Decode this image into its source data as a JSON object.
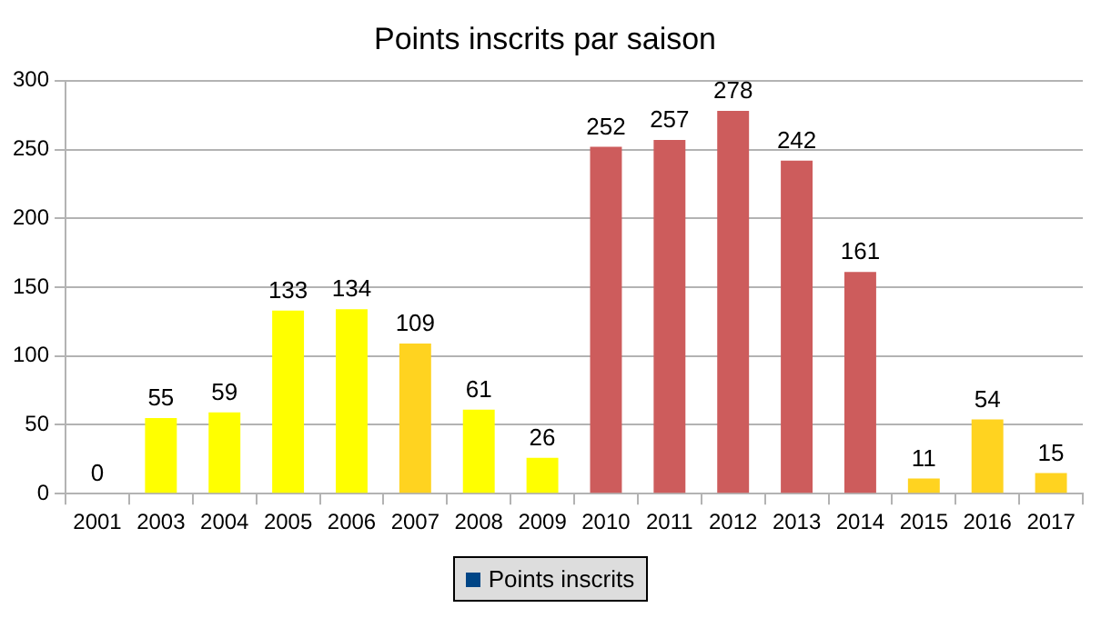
{
  "chart_data": {
    "type": "bar",
    "title": "Points inscrits par saison",
    "categories": [
      "2001",
      "2003",
      "2004",
      "2005",
      "2006",
      "2007",
      "2008",
      "2009",
      "2010",
      "2011",
      "2012",
      "2013",
      "2014",
      "2015",
      "2016",
      "2017"
    ],
    "series": [
      {
        "name": "Points inscrits",
        "color": "#004586",
        "values": [
          0,
          55,
          59,
          133,
          134,
          109,
          61,
          26,
          252,
          257,
          278,
          242,
          161,
          11,
          54,
          15
        ],
        "colors": [
          "#ffff00",
          "#ffff00",
          "#ffff00",
          "#ffff00",
          "#ffff00",
          "#ffd320",
          "#ffff00",
          "#ffff00",
          "#cd5c5c",
          "#cd5c5c",
          "#cd5c5c",
          "#cd5c5c",
          "#cd5c5c",
          "#ffd320",
          "#ffd320",
          "#ffd320"
        ]
      }
    ],
    "ylim": [
      0,
      300
    ],
    "yticks": [
      0,
      50,
      100,
      150,
      200,
      250,
      300
    ],
    "grid": "y",
    "legend": "bottom",
    "data_labels": true
  }
}
